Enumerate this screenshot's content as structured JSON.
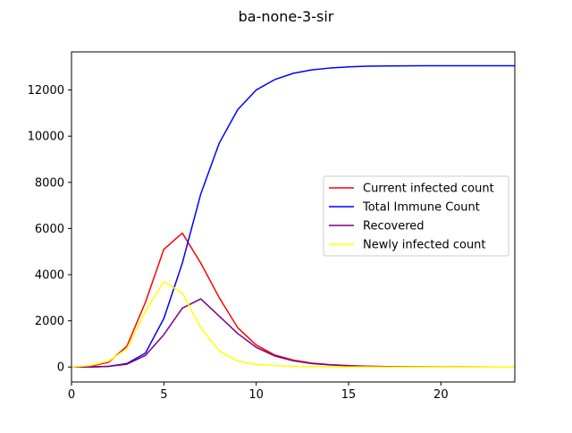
{
  "chart_data": {
    "type": "line",
    "title": "ba-none-3-sir",
    "xlabel": "",
    "ylabel": "",
    "xlim": [
      0,
      24
    ],
    "ylim": [
      -650,
      13650
    ],
    "xticks": [
      0,
      5,
      10,
      15,
      20
    ],
    "yticks": [
      0,
      2000,
      4000,
      6000,
      8000,
      10000,
      12000
    ],
    "grid": false,
    "legend_position": "center-right",
    "x": [
      0,
      1,
      2,
      3,
      4,
      5,
      6,
      7,
      8,
      9,
      10,
      11,
      12,
      13,
      14,
      15,
      16,
      17,
      18,
      19,
      20,
      21,
      22,
      23,
      24
    ],
    "series": [
      {
        "name": "Current infected count",
        "color": "#ff0000",
        "values": [
          0,
          30,
          200,
          900,
          2800,
          5100,
          5800,
          4500,
          3000,
          1700,
          950,
          520,
          300,
          170,
          100,
          60,
          35,
          20,
          12,
          8,
          5,
          3,
          2,
          1,
          1
        ]
      },
      {
        "name": "Total Immune Count",
        "color": "#0000ff",
        "values": [
          0,
          0,
          30,
          150,
          600,
          2100,
          4500,
          7500,
          9700,
          11150,
          12000,
          12450,
          12720,
          12870,
          12950,
          13000,
          13030,
          13040,
          13045,
          13050,
          13050,
          13050,
          13050,
          13050,
          13050
        ]
      },
      {
        "name": "Recovered",
        "color": "#800080",
        "values": [
          0,
          0,
          30,
          120,
          500,
          1400,
          2550,
          2950,
          2200,
          1450,
          850,
          480,
          270,
          150,
          90,
          50,
          30,
          18,
          10,
          6,
          4,
          2,
          1,
          1,
          0
        ]
      },
      {
        "name": "Newly infected count",
        "color": "#ffff00",
        "values": [
          0,
          60,
          250,
          800,
          2400,
          3700,
          3200,
          1700,
          700,
          250,
          110,
          60,
          30,
          15,
          8,
          4,
          2,
          1,
          1,
          0,
          0,
          0,
          0,
          0,
          0
        ]
      }
    ]
  }
}
